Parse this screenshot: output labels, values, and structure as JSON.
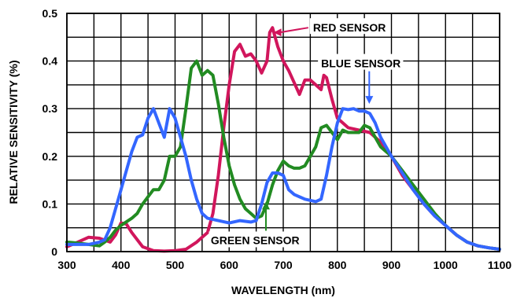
{
  "chart_data": {
    "type": "line",
    "title": "",
    "xlabel": "WAVELENGTH (nm)",
    "ylabel": "RELATIVE SENSITIVITY (%)",
    "xlim": [
      300,
      1100
    ],
    "ylim": [
      0,
      0.5
    ],
    "x_ticks": [
      300,
      400,
      500,
      600,
      700,
      800,
      900,
      1000,
      1100
    ],
    "y_ticks": [
      0,
      0.1,
      0.2,
      0.3,
      0.4,
      0.5
    ],
    "x_tick_labels": [
      "300",
      "400",
      "500",
      "600",
      "700",
      "800",
      "900",
      "1000",
      "1100"
    ],
    "y_tick_labels": [
      "0",
      "0.1",
      "0.2",
      "0.3",
      "0.4",
      "0.5"
    ],
    "grid": true,
    "legend": "none",
    "series": [
      {
        "name": "RED SENSOR",
        "color": "#d1165c",
        "points": [
          [
            300,
            0.01
          ],
          [
            320,
            0.02
          ],
          [
            340,
            0.03
          ],
          [
            360,
            0.028
          ],
          [
            380,
            0.02
          ],
          [
            390,
            0.035
          ],
          [
            400,
            0.06
          ],
          [
            410,
            0.058
          ],
          [
            420,
            0.04
          ],
          [
            440,
            0.01
          ],
          [
            460,
            0.002
          ],
          [
            480,
            0.001
          ],
          [
            500,
            0.002
          ],
          [
            520,
            0.005
          ],
          [
            540,
            0.02
          ],
          [
            550,
            0.03
          ],
          [
            560,
            0.04
          ],
          [
            570,
            0.08
          ],
          [
            580,
            0.16
          ],
          [
            590,
            0.26
          ],
          [
            600,
            0.35
          ],
          [
            610,
            0.42
          ],
          [
            620,
            0.435
          ],
          [
            630,
            0.41
          ],
          [
            640,
            0.415
          ],
          [
            650,
            0.4
          ],
          [
            660,
            0.375
          ],
          [
            670,
            0.4
          ],
          [
            675,
            0.46
          ],
          [
            680,
            0.47
          ],
          [
            690,
            0.43
          ],
          [
            700,
            0.4
          ],
          [
            710,
            0.38
          ],
          [
            720,
            0.355
          ],
          [
            730,
            0.33
          ],
          [
            740,
            0.36
          ],
          [
            750,
            0.36
          ],
          [
            760,
            0.35
          ],
          [
            770,
            0.34
          ],
          [
            775,
            0.37
          ],
          [
            780,
            0.365
          ],
          [
            790,
            0.32
          ],
          [
            800,
            0.28
          ],
          [
            820,
            0.26
          ],
          [
            840,
            0.255
          ],
          [
            860,
            0.25
          ],
          [
            880,
            0.23
          ],
          [
            900,
            0.2
          ],
          [
            920,
            0.16
          ],
          [
            940,
            0.13
          ],
          [
            960,
            0.1
          ],
          [
            980,
            0.075
          ],
          [
            1000,
            0.055
          ],
          [
            1020,
            0.035
          ],
          [
            1040,
            0.02
          ],
          [
            1060,
            0.012
          ],
          [
            1080,
            0.008
          ],
          [
            1100,
            0.005
          ]
        ]
      },
      {
        "name": "GREEN SENSOR",
        "color": "#228b22",
        "points": [
          [
            300,
            0.02
          ],
          [
            320,
            0.018
          ],
          [
            340,
            0.015
          ],
          [
            360,
            0.012
          ],
          [
            370,
            0.02
          ],
          [
            380,
            0.03
          ],
          [
            390,
            0.045
          ],
          [
            400,
            0.055
          ],
          [
            420,
            0.07
          ],
          [
            430,
            0.08
          ],
          [
            440,
            0.1
          ],
          [
            450,
            0.115
          ],
          [
            460,
            0.13
          ],
          [
            470,
            0.13
          ],
          [
            480,
            0.15
          ],
          [
            490,
            0.2
          ],
          [
            500,
            0.2
          ],
          [
            510,
            0.22
          ],
          [
            520,
            0.3
          ],
          [
            530,
            0.385
          ],
          [
            540,
            0.4
          ],
          [
            550,
            0.37
          ],
          [
            560,
            0.38
          ],
          [
            570,
            0.37
          ],
          [
            580,
            0.31
          ],
          [
            590,
            0.24
          ],
          [
            600,
            0.18
          ],
          [
            610,
            0.14
          ],
          [
            620,
            0.11
          ],
          [
            630,
            0.09
          ],
          [
            640,
            0.08
          ],
          [
            650,
            0.07
          ],
          [
            660,
            0.075
          ],
          [
            670,
            0.1
          ],
          [
            680,
            0.14
          ],
          [
            690,
            0.17
          ],
          [
            700,
            0.19
          ],
          [
            710,
            0.18
          ],
          [
            720,
            0.175
          ],
          [
            730,
            0.175
          ],
          [
            740,
            0.18
          ],
          [
            760,
            0.22
          ],
          [
            770,
            0.26
          ],
          [
            780,
            0.265
          ],
          [
            790,
            0.25
          ],
          [
            800,
            0.235
          ],
          [
            810,
            0.255
          ],
          [
            820,
            0.25
          ],
          [
            830,
            0.25
          ],
          [
            840,
            0.25
          ],
          [
            850,
            0.265
          ],
          [
            860,
            0.26
          ],
          [
            870,
            0.24
          ],
          [
            880,
            0.22
          ],
          [
            900,
            0.2
          ],
          [
            920,
            0.17
          ],
          [
            940,
            0.14
          ],
          [
            960,
            0.11
          ],
          [
            980,
            0.08
          ],
          [
            1000,
            0.055
          ],
          [
            1020,
            0.035
          ],
          [
            1040,
            0.02
          ],
          [
            1060,
            0.012
          ],
          [
            1080,
            0.008
          ],
          [
            1100,
            0.005
          ]
        ]
      },
      {
        "name": "BLUE SENSOR",
        "color": "#3366ff",
        "points": [
          [
            300,
            0.015
          ],
          [
            320,
            0.015
          ],
          [
            340,
            0.015
          ],
          [
            360,
            0.02
          ],
          [
            370,
            0.025
          ],
          [
            380,
            0.05
          ],
          [
            390,
            0.09
          ],
          [
            400,
            0.13
          ],
          [
            410,
            0.17
          ],
          [
            420,
            0.21
          ],
          [
            430,
            0.24
          ],
          [
            440,
            0.245
          ],
          [
            450,
            0.28
          ],
          [
            460,
            0.3
          ],
          [
            470,
            0.27
          ],
          [
            480,
            0.24
          ],
          [
            490,
            0.3
          ],
          [
            500,
            0.28
          ],
          [
            510,
            0.24
          ],
          [
            520,
            0.2
          ],
          [
            530,
            0.15
          ],
          [
            540,
            0.11
          ],
          [
            550,
            0.08
          ],
          [
            560,
            0.07
          ],
          [
            580,
            0.065
          ],
          [
            600,
            0.06
          ],
          [
            620,
            0.065
          ],
          [
            640,
            0.062
          ],
          [
            650,
            0.065
          ],
          [
            660,
            0.1
          ],
          [
            670,
            0.145
          ],
          [
            680,
            0.165
          ],
          [
            690,
            0.165
          ],
          [
            700,
            0.16
          ],
          [
            710,
            0.13
          ],
          [
            720,
            0.12
          ],
          [
            740,
            0.11
          ],
          [
            760,
            0.105
          ],
          [
            770,
            0.11
          ],
          [
            780,
            0.16
          ],
          [
            790,
            0.22
          ],
          [
            800,
            0.27
          ],
          [
            810,
            0.3
          ],
          [
            820,
            0.298
          ],
          [
            830,
            0.3
          ],
          [
            840,
            0.295
          ],
          [
            850,
            0.295
          ],
          [
            860,
            0.29
          ],
          [
            870,
            0.27
          ],
          [
            880,
            0.24
          ],
          [
            900,
            0.2
          ],
          [
            920,
            0.165
          ],
          [
            940,
            0.13
          ],
          [
            960,
            0.1
          ],
          [
            980,
            0.075
          ],
          [
            1000,
            0.055
          ],
          [
            1020,
            0.035
          ],
          [
            1040,
            0.02
          ],
          [
            1060,
            0.012
          ],
          [
            1080,
            0.008
          ],
          [
            1100,
            0.005
          ]
        ]
      }
    ],
    "annotations": [
      {
        "text": "RED SENSOR",
        "series": 0,
        "arrow_target": [
          682,
          0.46
        ],
        "label_anchor": [
          755,
          0.47
        ]
      },
      {
        "text": "BLUE SENSOR",
        "series": 2,
        "arrow_target": [
          859,
          0.31
        ],
        "label_anchor": [
          770,
          0.395
        ]
      },
      {
        "text": "GREEN SENSOR",
        "series": 1,
        "arrow_target": [
          668,
          0.105
        ],
        "label_anchor": [
          648,
          0.024
        ]
      }
    ]
  }
}
